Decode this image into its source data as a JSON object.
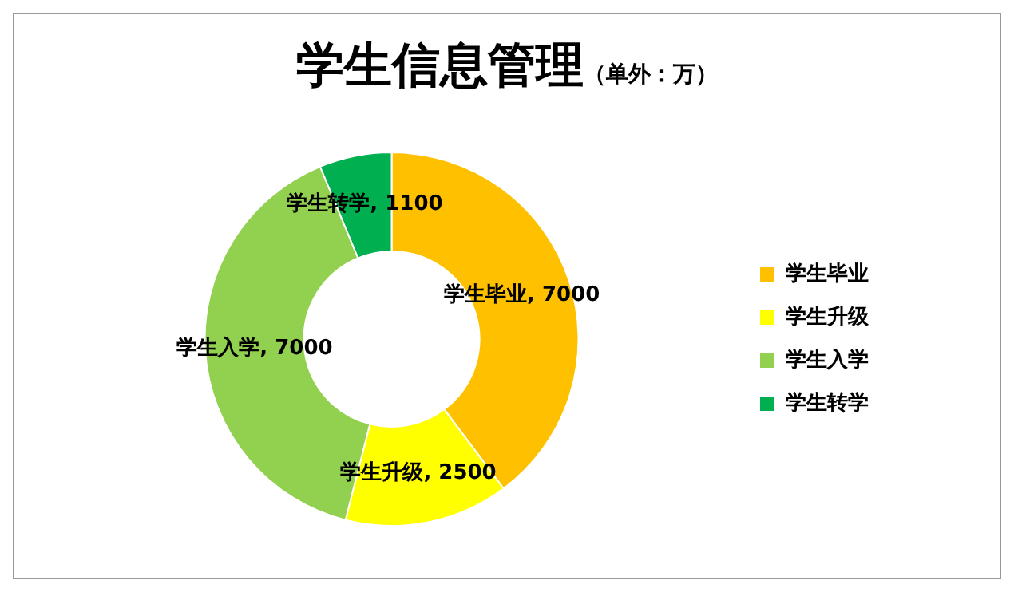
{
  "chart_data": {
    "type": "donut",
    "title": "学生信息管理",
    "subtitle": "（单外：万）",
    "categories": [
      "学生毕业",
      "学生升级",
      "学生入学",
      "学生转学"
    ],
    "values": [
      7000,
      2500,
      7000,
      1100
    ],
    "colors": [
      "#ffc000",
      "#ffff00",
      "#92d050",
      "#00b050"
    ],
    "value_labels": [
      "学生毕业, 7000",
      "学生升级, 2500",
      "学生入学, 7000",
      "学生转学, 1100"
    ],
    "legend": "right"
  }
}
